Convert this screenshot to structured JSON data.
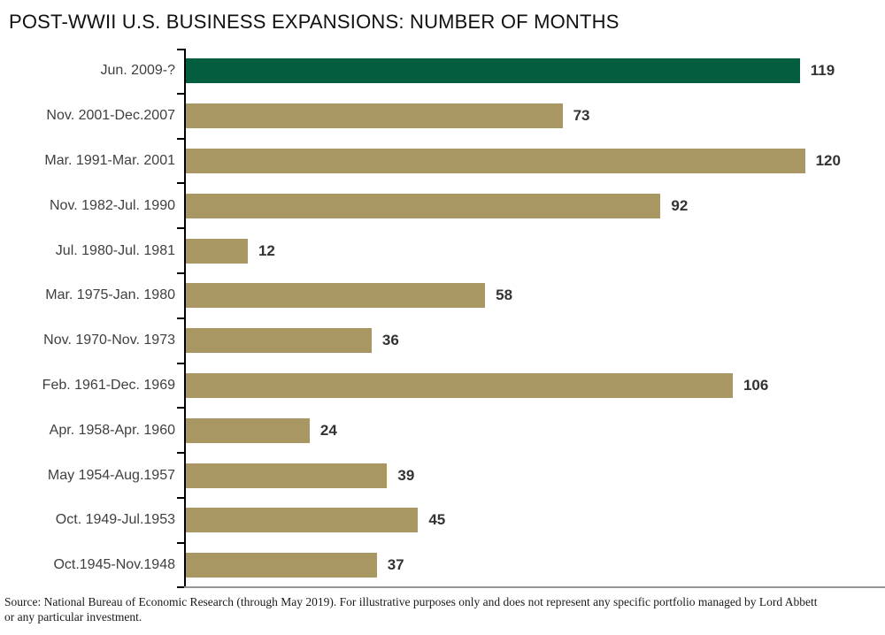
{
  "title": "POST-WWII U.S. BUSINESS EXPANSIONS: NUMBER OF MONTHS",
  "chart_data": {
    "type": "bar",
    "orientation": "horizontal",
    "title": "POST-WWII U.S. BUSINESS EXPANSIONS: NUMBER OF MONTHS",
    "categories": [
      "Jun. 2009-?",
      "Nov. 2001-Dec.2007",
      "Mar. 1991-Mar. 2001",
      "Nov. 1982-Jul. 1990",
      "Jul. 1980-Jul. 1981",
      "Mar. 1975-Jan. 1980",
      "Nov. 1970-Nov. 1973",
      "Feb. 1961-Dec. 1969",
      "Apr. 1958-Apr. 1960",
      "May 1954-Aug.1957",
      "Oct. 1949-Jul.1953",
      "Oct.1945-Nov.1948"
    ],
    "values": [
      119,
      73,
      120,
      92,
      12,
      58,
      36,
      106,
      24,
      39,
      45,
      37
    ],
    "unit": "months",
    "xlim": [
      0,
      135
    ],
    "grid": false,
    "legend": false,
    "value_labels_shown": true,
    "highlight_index": 0,
    "colors": {
      "highlight_bar": "#025E3E",
      "default_bar": "#A89763",
      "axis": "#000000",
      "baseline": "#969696",
      "category_text": "#3f3f3f",
      "value_text": "#333333"
    }
  },
  "footnote": {
    "lines": [
      "Source: National Bureau of Economic Research (through May 2019). For illustrative purposes only and does not represent any specific portfolio managed by Lord Abbett",
      "or any particular investment."
    ]
  }
}
